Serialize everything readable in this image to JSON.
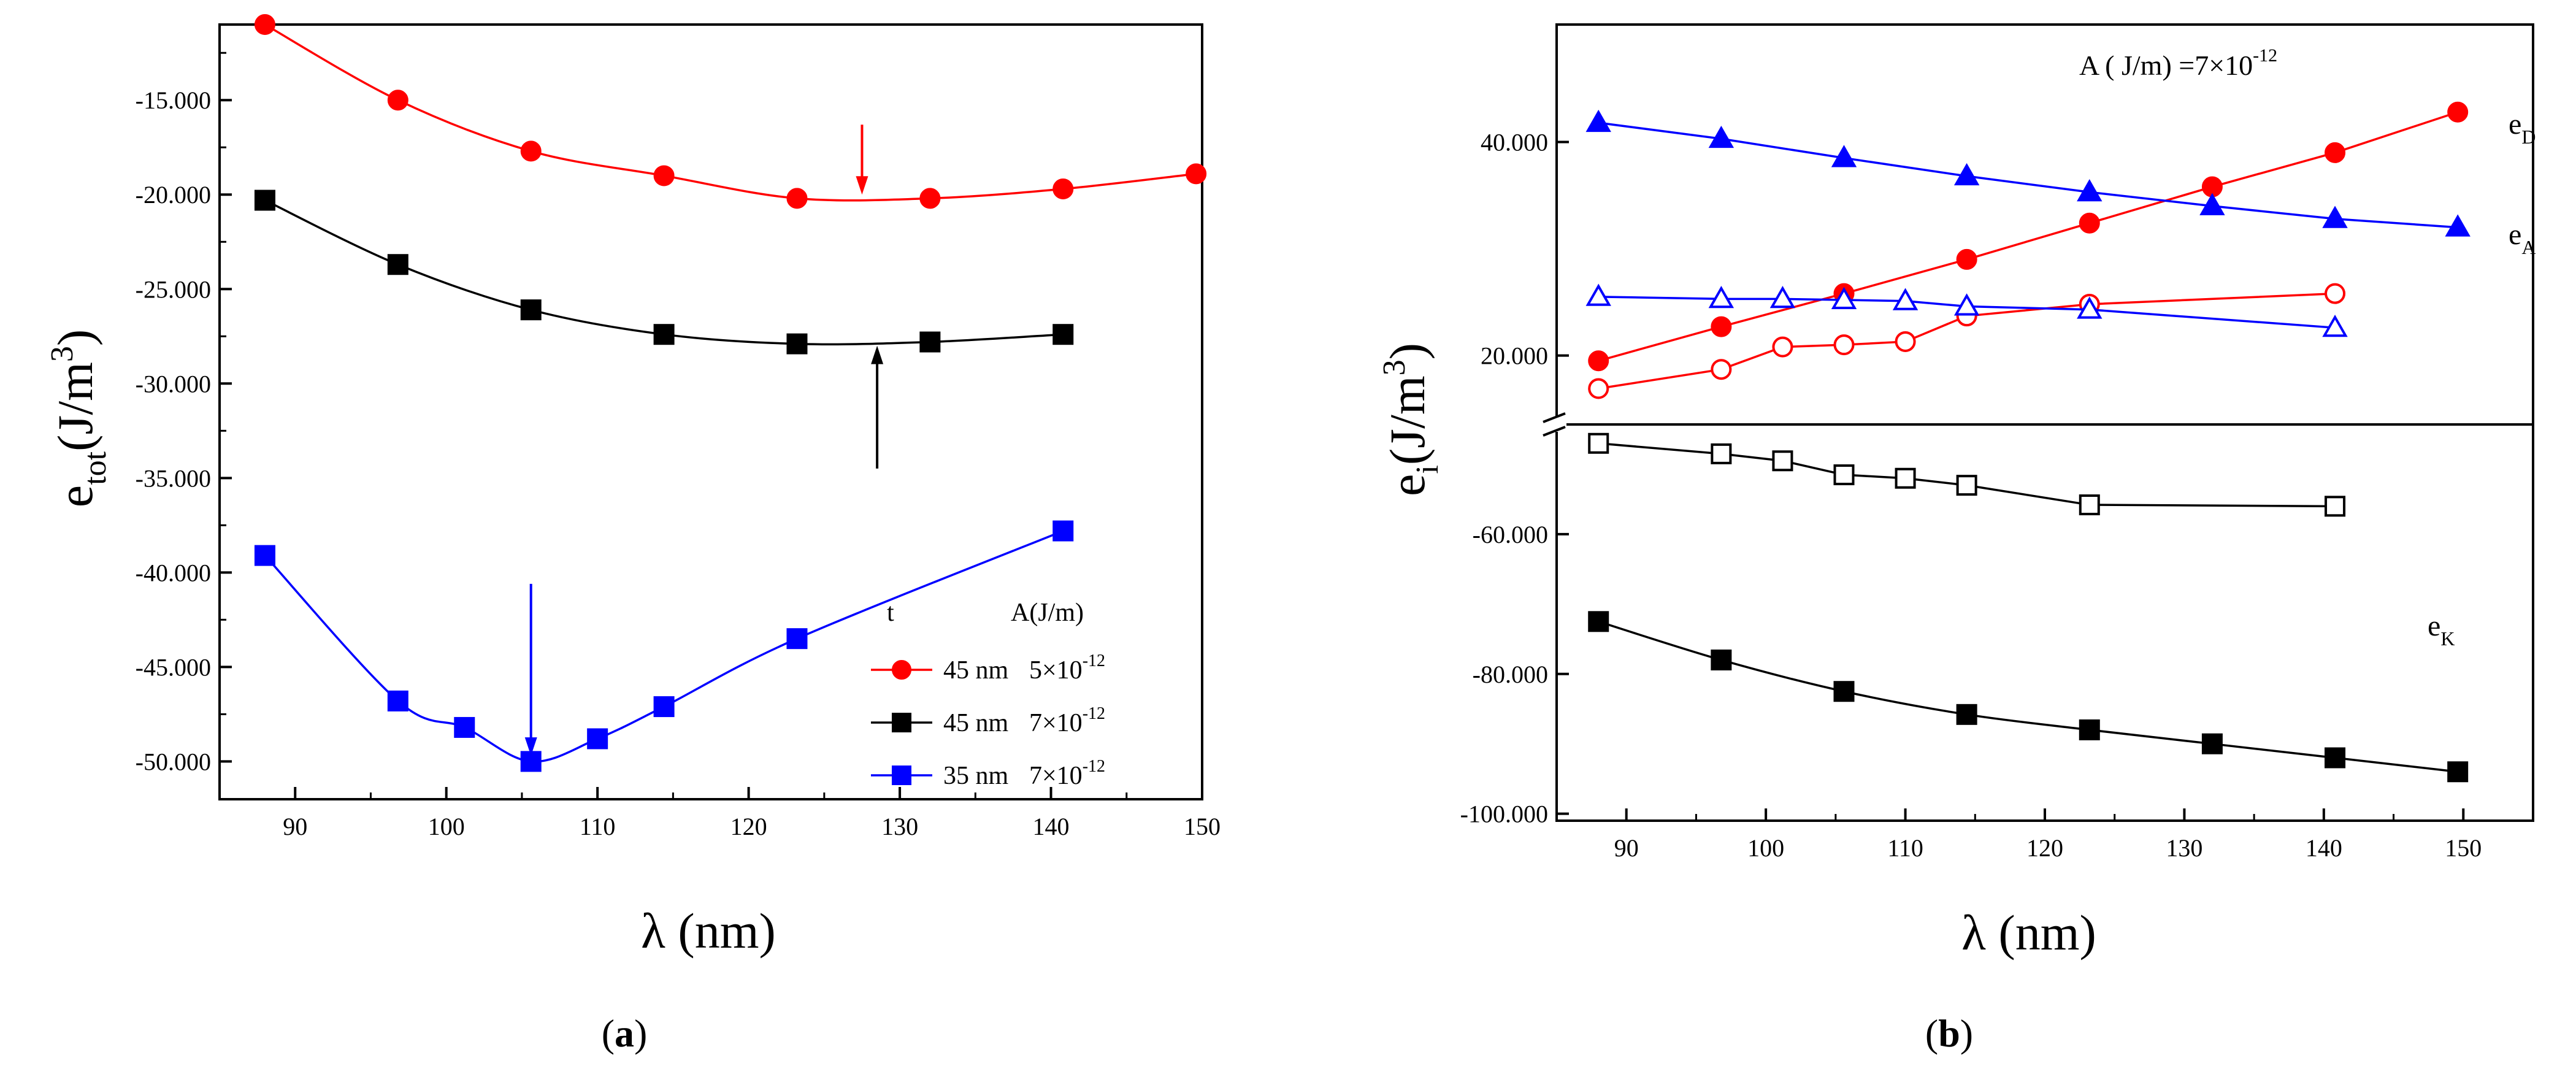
{
  "chart_data": [
    {
      "panel": "(a)",
      "type": "line",
      "xlabel": "λ (nm)",
      "ylabel": {
        "base": "e",
        "sub": "tot",
        "unit": "(J/m",
        "sup": "3",
        "close": ")"
      },
      "xlim": [
        85,
        150
      ],
      "ylim": [
        -52000,
        -11000
      ],
      "xticks": [
        90,
        100,
        110,
        120,
        130,
        140,
        150
      ],
      "xtick_labels": [
        "90",
        "100",
        "110",
        "120",
        "130",
        "140",
        "150"
      ],
      "yticks": [
        -15000,
        -20000,
        -25000,
        -30000,
        -35000,
        -40000,
        -45000,
        -50000
      ],
      "ytick_labels": [
        "-15.000",
        "-20.000",
        "-25.000",
        "-30.000",
        "-35.000",
        "-40.000",
        "-45.000",
        "-50.000"
      ],
      "legend": {
        "position": "bottom-right",
        "header": {
          "t": "t",
          "A": "A(J/m)"
        },
        "entries": [
          {
            "t": "45 nm",
            "A_base": "5×10",
            "A_exp": "-12",
            "series": 0
          },
          {
            "t": "45 nm",
            "A_base": "7×10",
            "A_exp": "-12",
            "series": 1
          },
          {
            "t": "35 nm",
            "A_base": "7×10",
            "A_exp": "-12",
            "series": 2
          }
        ]
      },
      "series": [
        {
          "name": "45 nm 5×10^-12",
          "color": "#ff0000",
          "marker": "circle-filled",
          "x": [
            88,
            96.8,
            105.6,
            114.4,
            123.2,
            132,
            140.8,
            149.6
          ],
          "y": [
            -11000,
            -15000,
            -17700,
            -19000,
            -20200,
            -20200,
            -19700,
            -18900
          ],
          "min_arrow": {
            "x": 127.5,
            "from_y": -16300,
            "to_y": -20000
          }
        },
        {
          "name": "45 nm 7×10^-12",
          "color": "#000000",
          "marker": "square-filled",
          "x": [
            88,
            96.8,
            105.6,
            114.4,
            123.2,
            132,
            140.8
          ],
          "y": [
            -20300,
            -23700,
            -26100,
            -27400,
            -27900,
            -27800,
            -27400
          ],
          "min_arrow": {
            "x": 128.5,
            "from_y": -34500,
            "to_y": -28000
          }
        },
        {
          "name": "35 nm 7×10^-12",
          "color": "#0000ff",
          "marker": "square-filled",
          "x": [
            88,
            96.8,
            101.2,
            105.6,
            110,
            114.4,
            123.2,
            140.8
          ],
          "y": [
            -39100,
            -46800,
            -48200,
            -50000,
            -48800,
            -47100,
            -43500,
            -37800
          ],
          "min_arrow": {
            "x": 105.6,
            "from_y": -40600,
            "to_y": -49700
          }
        }
      ]
    },
    {
      "panel": "(b)",
      "type": "line",
      "xlabel": "λ (nm)",
      "ylabel": {
        "base": "e",
        "sub": "i",
        "unit": "(J/m",
        "sup": "3",
        "close": ")"
      },
      "annotation": {
        "base": "A ( J/m) =7×10",
        "exp": "-12"
      },
      "xlim": [
        85,
        155
      ],
      "xticks": [
        90,
        100,
        110,
        120,
        130,
        140,
        150
      ],
      "xtick_labels": [
        "90",
        "100",
        "110",
        "120",
        "130",
        "140",
        "150"
      ],
      "broken_axis": true,
      "upper": {
        "ylim": [
          14000,
          51000
        ],
        "yticks": [
          20000,
          40000
        ],
        "ytick_labels": [
          "20.000",
          "40.000"
        ]
      },
      "lower": {
        "ylim": [
          -101000,
          -45000
        ],
        "yticks": [
          -60000,
          -80000,
          -100000
        ],
        "ytick_labels": [
          "-60.000",
          "-80.000",
          "-100.000"
        ]
      },
      "series_labels": [
        {
          "base": "e",
          "sub": "D",
          "series": 0
        },
        {
          "base": "e",
          "sub": "A",
          "series": 2
        },
        {
          "base": "e",
          "sub": "K",
          "series": 4
        }
      ],
      "series": [
        {
          "name": "e_D (filled)",
          "color": "#ff0000",
          "marker": "circle-filled",
          "panel": "upper",
          "x": [
            88,
            96.8,
            105.6,
            114.4,
            123.2,
            132,
            140.8,
            149.6
          ],
          "y": [
            19500,
            22700,
            25800,
            29000,
            32400,
            35800,
            39000,
            42800
          ]
        },
        {
          "name": "e_D (open)",
          "color": "#ff0000",
          "marker": "circle-open",
          "panel": "upper",
          "x": [
            88,
            96.8,
            101.2,
            105.6,
            110,
            114.4,
            123.2,
            140.8
          ],
          "y": [
            16900,
            18700,
            20800,
            21000,
            21300,
            23700,
            24800,
            25800
          ]
        },
        {
          "name": "e_A (filled)",
          "color": "#0000ff",
          "marker": "triangle-filled",
          "panel": "upper",
          "x": [
            88,
            96.8,
            105.6,
            114.4,
            123.2,
            132,
            140.8,
            149.6
          ],
          "y": [
            41800,
            40300,
            38500,
            36800,
            35300,
            34000,
            32800,
            32000
          ]
        },
        {
          "name": "e_A (open)",
          "color": "#0000ff",
          "marker": "triangle-open",
          "panel": "upper",
          "x": [
            88,
            96.8,
            101.2,
            105.6,
            110,
            114.4,
            123.2,
            140.8
          ],
          "y": [
            25500,
            25300,
            25300,
            25200,
            25100,
            24600,
            24300,
            22600
          ]
        },
        {
          "name": "e_K (filled)",
          "color": "#000000",
          "marker": "square-filled",
          "panel": "lower",
          "x": [
            88,
            96.8,
            105.6,
            114.4,
            123.2,
            132,
            140.8,
            149.6
          ],
          "y": [
            -72500,
            -78000,
            -82500,
            -85800,
            -88000,
            -90000,
            -92000,
            -94000
          ]
        },
        {
          "name": "e_K (open)",
          "color": "#000000",
          "marker": "square-open",
          "panel": "lower",
          "x": [
            88,
            96.8,
            101.2,
            105.6,
            110,
            114.4,
            123.2,
            140.8
          ],
          "y": [
            -47000,
            -48500,
            -49500,
            -51500,
            -52000,
            -53000,
            -55800,
            -56000
          ]
        }
      ]
    }
  ]
}
